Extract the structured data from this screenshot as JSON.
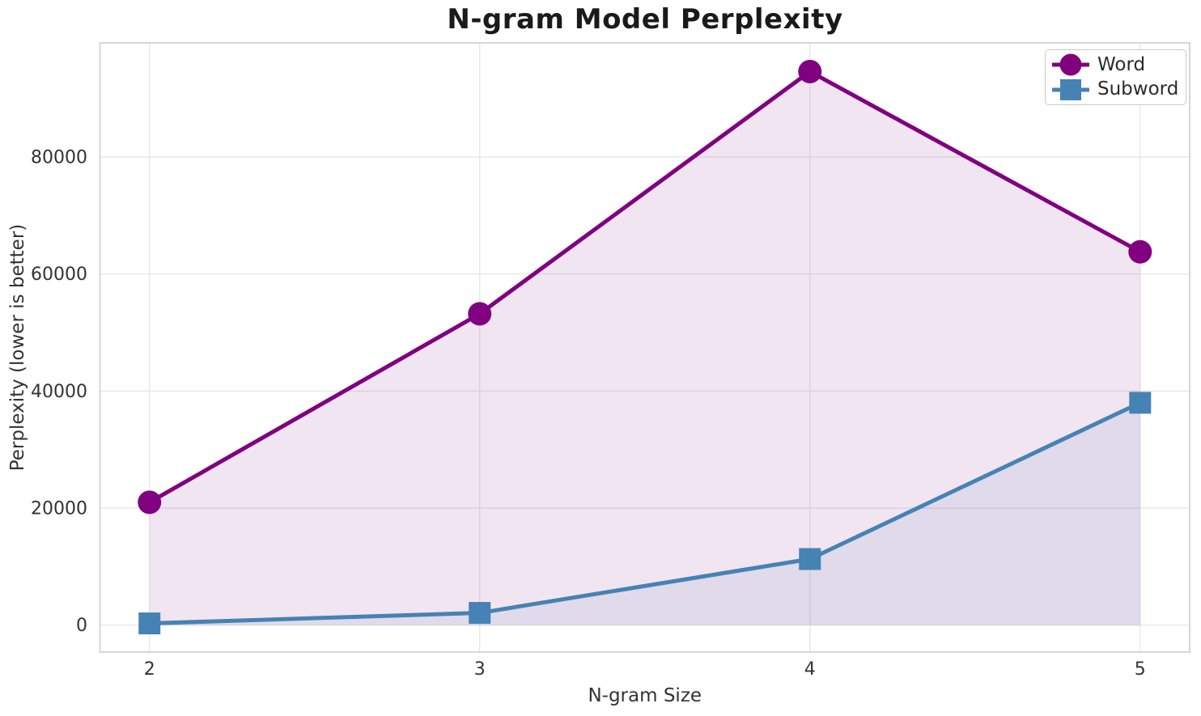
{
  "chart_data": {
    "type": "line",
    "title": "N-gram Model Perplexity",
    "xlabel": "N-gram Size",
    "ylabel": "Perplexity (lower is better)",
    "x": [
      2,
      3,
      4,
      5
    ],
    "series": [
      {
        "name": "Word",
        "color": "#800080",
        "marker": "circle",
        "values": [
          21000,
          53200,
          94600,
          63800
        ]
      },
      {
        "name": "Subword",
        "color": "#4682b4",
        "marker": "square",
        "values": [
          300,
          2100,
          11300,
          38000
        ]
      }
    ],
    "fill_alpha": 0.1,
    "fill_baseline": 0,
    "xticks": [
      2,
      3,
      4,
      5
    ],
    "yticks": [
      0,
      20000,
      40000,
      60000,
      80000
    ],
    "xlim": [
      1.85,
      5.15
    ],
    "ylim": [
      -4600,
      99500
    ],
    "grid": true,
    "grid_color": "#e6e6e6",
    "spine_color": "#d2d2d2",
    "legend_position": "upper right"
  }
}
